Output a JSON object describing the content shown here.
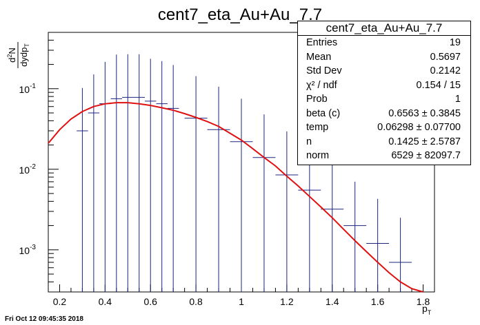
{
  "chart_data": {
    "type": "scatter",
    "title": "cent7_eta_Au+Au_7.7",
    "xlabel": "p_T",
    "ylabel": "d2N/dydp_T",
    "xlim": [
      0.15,
      1.85
    ],
    "ylim": [
      0.0003,
      0.5
    ],
    "yscale": "log",
    "x_ticks": [
      "0.2",
      "0.4",
      "0.6",
      "0.8",
      "1",
      "1.2",
      "1.4",
      "1.6",
      "1.8"
    ],
    "x_tick_values": [
      0.2,
      0.4,
      0.6,
      0.8,
      1.0,
      1.2,
      1.4,
      1.6,
      1.8
    ],
    "y_ticks": [
      {
        "base": "10",
        "exp": "-3",
        "value": 0.001
      },
      {
        "base": "10",
        "exp": "-2",
        "value": 0.01
      },
      {
        "base": "10",
        "exp": "-1",
        "value": 0.1
      }
    ],
    "series": [
      {
        "name": "data",
        "points": [
          {
            "x": 0.3,
            "xerr": 0.025,
            "y": 0.03,
            "yerr_low": 0.0297,
            "yerr_high": 0.072
          },
          {
            "x": 0.35,
            "xerr": 0.025,
            "y": 0.05,
            "yerr_low": 0.0497,
            "yerr_high": 0.1
          },
          {
            "x": 0.4,
            "xerr": 0.025,
            "y": 0.065,
            "yerr_low": 0.0647,
            "yerr_high": 0.15
          },
          {
            "x": 0.45,
            "xerr": 0.025,
            "y": 0.075,
            "yerr_low": 0.0747,
            "yerr_high": 0.19
          },
          {
            "x": 0.5,
            "xerr": 0.025,
            "y": 0.078,
            "yerr_low": 0.0777,
            "yerr_high": 0.19
          },
          {
            "x": 0.55,
            "xerr": 0.025,
            "y": 0.078,
            "yerr_low": 0.0777,
            "yerr_high": 0.19
          },
          {
            "x": 0.6,
            "xerr": 0.025,
            "y": 0.07,
            "yerr_low": 0.0697,
            "yerr_high": 0.165
          },
          {
            "x": 0.65,
            "xerr": 0.025,
            "y": 0.065,
            "yerr_low": 0.0647,
            "yerr_high": 0.155
          },
          {
            "x": 0.7,
            "xerr": 0.025,
            "y": 0.057,
            "yerr_low": 0.0567,
            "yerr_high": 0.14
          },
          {
            "x": 0.8,
            "xerr": 0.05,
            "y": 0.043,
            "yerr_low": 0.0427,
            "yerr_high": 0.1
          },
          {
            "x": 0.9,
            "xerr": 0.05,
            "y": 0.031,
            "yerr_low": 0.0307,
            "yerr_high": 0.075
          },
          {
            "x": 1.0,
            "xerr": 0.05,
            "y": 0.022,
            "yerr_low": 0.0217,
            "yerr_high": 0.053
          },
          {
            "x": 1.1,
            "xerr": 0.05,
            "y": 0.014,
            "yerr_low": 0.0137,
            "yerr_high": 0.034
          },
          {
            "x": 1.2,
            "xerr": 0.05,
            "y": 0.0085,
            "yerr_low": 0.0082,
            "yerr_high": 0.021
          },
          {
            "x": 1.3,
            "xerr": 0.05,
            "y": 0.0055,
            "yerr_low": 0.0052,
            "yerr_high": 0.015
          },
          {
            "x": 1.4,
            "xerr": 0.05,
            "y": 0.0032,
            "yerr_low": 0.0029,
            "yerr_high": 0.009
          },
          {
            "x": 1.5,
            "xerr": 0.05,
            "y": 0.002,
            "yerr_low": 0.0017,
            "yerr_high": 0.005
          },
          {
            "x": 1.6,
            "xerr": 0.05,
            "y": 0.0012,
            "yerr_low": 0.0009,
            "yerr_high": 0.0031
          },
          {
            "x": 1.7,
            "xerr": 0.05,
            "y": 0.0007,
            "yerr_low": 0.0004,
            "yerr_high": 0.0018
          }
        ]
      },
      {
        "name": "fit",
        "x": [
          0.15,
          0.2,
          0.25,
          0.3,
          0.35,
          0.4,
          0.45,
          0.5,
          0.55,
          0.6,
          0.65,
          0.7,
          0.75,
          0.8,
          0.85,
          0.9,
          0.95,
          1.0,
          1.05,
          1.1,
          1.15,
          1.2,
          1.25,
          1.3,
          1.35,
          1.4,
          1.45,
          1.5,
          1.55,
          1.6,
          1.65,
          1.7,
          1.75,
          1.8
        ],
        "y": [
          0.021,
          0.031,
          0.042,
          0.052,
          0.06,
          0.065,
          0.067,
          0.067,
          0.065,
          0.062,
          0.058,
          0.054,
          0.049,
          0.044,
          0.039,
          0.034,
          0.028,
          0.023,
          0.018,
          0.014,
          0.011,
          0.0082,
          0.0062,
          0.0046,
          0.0034,
          0.0025,
          0.0018,
          0.0013,
          0.00095,
          0.0007,
          0.00052,
          0.0004,
          0.00033,
          0.0003
        ]
      }
    ],
    "colors": {
      "data": "#1a237e",
      "fit": "#e01010"
    }
  },
  "stats": {
    "title": "cent7_eta_Au+Au_7.7",
    "rows": [
      {
        "key": "Entries",
        "value": "19"
      },
      {
        "key": "Mean",
        "value": "0.5697"
      },
      {
        "key": "Std Dev",
        "value": "0.2142"
      },
      {
        "key": "χ² / ndf",
        "value": "0.154 / 15"
      },
      {
        "key": "Prob",
        "value": "1"
      },
      {
        "key": "beta (c)",
        "value": "0.6563 ± 0.3845"
      },
      {
        "key": "temp",
        "value": "0.06298 ± 0.07700"
      },
      {
        "key": "n",
        "value": "0.1425 ± 2.5787"
      },
      {
        "key": "norm",
        "value": "6529 ± 82097.7"
      }
    ]
  },
  "footer": "Fri Oct 12 09:45:35 2018"
}
